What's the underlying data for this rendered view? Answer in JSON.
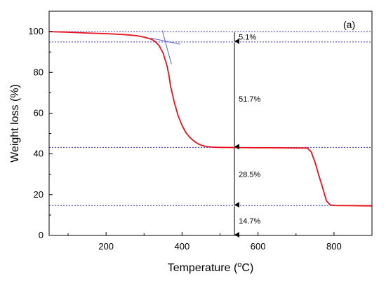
{
  "chart_data": {
    "type": "line",
    "panel_label": "(a)",
    "xlabel": "Temperature (",
    "xlabel_sup": "o",
    "xlabel_suffix": "C)",
    "ylabel": "Weight loss (%)",
    "xlim": [
      50,
      900
    ],
    "ylim": [
      0,
      110
    ],
    "x_ticks": [
      200,
      400,
      600,
      800
    ],
    "y_ticks": [
      0,
      20,
      40,
      60,
      80,
      100
    ],
    "x_tick_labels": [
      "200",
      "400",
      "600",
      "800"
    ],
    "y_tick_labels": [
      "0",
      "20",
      "40",
      "60",
      "80",
      "100"
    ],
    "series": [
      {
        "color": "#e8121f",
        "x": [
          50,
          100,
          150,
          200,
          250,
          280,
          300,
          320,
          330,
          340,
          350,
          360,
          365,
          370,
          380,
          390,
          400,
          410,
          420,
          430,
          440,
          450,
          460,
          470,
          480,
          500,
          550,
          600,
          650,
          700,
          730,
          740,
          750,
          760,
          770,
          780,
          790,
          800,
          850,
          900
        ],
        "y": [
          100,
          99.7,
          99.3,
          99.0,
          98.5,
          98.0,
          97.3,
          96.2,
          95.0,
          93.0,
          89.5,
          83.5,
          79,
          73,
          65,
          58.5,
          54,
          50.5,
          48.2,
          46.5,
          45.2,
          44.3,
          43.8,
          43.5,
          43.3,
          43.2,
          43.1,
          43.0,
          43.0,
          42.9,
          42.9,
          41,
          36,
          29.5,
          23.5,
          17,
          15,
          14.7,
          14.6,
          14.5
        ]
      }
    ],
    "reference_lines_y": [
      100,
      94.9,
      43.2,
      14.7
    ],
    "tangents": [
      {
        "x": [
          348,
          372
        ],
        "y": [
          100.5,
          84
        ]
      },
      {
        "x": [
          318,
          395
        ],
        "y": [
          96.8,
          93.8
        ]
      }
    ],
    "segments": [
      {
        "x": 538,
        "from": 100,
        "to": 94.9,
        "label": "5.1%",
        "label_y": 97.5
      },
      {
        "x": 538,
        "from": 94.9,
        "to": 43.2,
        "label": "51.7%",
        "label_y": 67
      },
      {
        "x": 538,
        "from": 43.2,
        "to": 14.7,
        "label": "28.5%",
        "label_y": 30
      },
      {
        "x": 538,
        "from": 14.7,
        "to": 0,
        "label": "14.7%",
        "label_y": 7.2
      }
    ]
  }
}
